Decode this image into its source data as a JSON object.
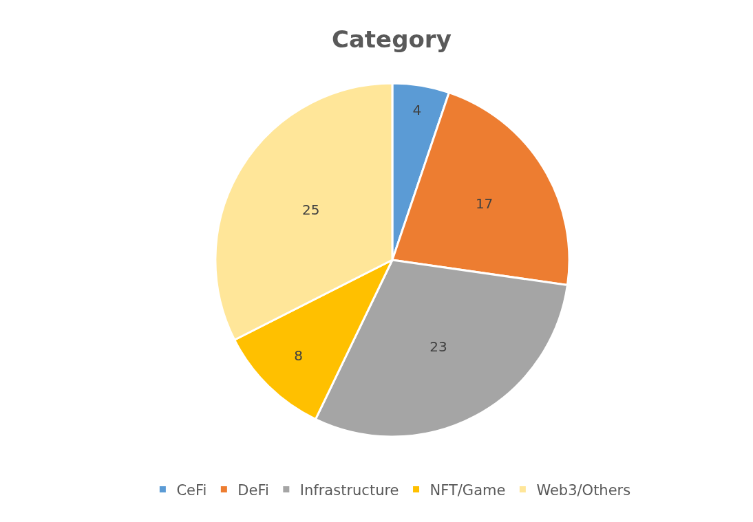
{
  "chart_data": {
    "type": "pie",
    "title": "Category",
    "categories": [
      "CeFi",
      "DeFi",
      "Infrastructure",
      "NFT/Game",
      "Web3/Others"
    ],
    "values": [
      4,
      17,
      23,
      8,
      25
    ],
    "colors": [
      "#5b9bd5",
      "#ed7d31",
      "#a5a5a5",
      "#ffc000",
      "#ffe699"
    ],
    "data_labels": true,
    "legend": "bottom"
  }
}
